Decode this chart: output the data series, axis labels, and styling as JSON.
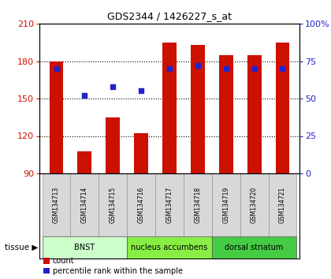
{
  "title": "GDS2344 / 1426227_s_at",
  "samples": [
    "GSM134713",
    "GSM134714",
    "GSM134715",
    "GSM134716",
    "GSM134717",
    "GSM134718",
    "GSM134719",
    "GSM134720",
    "GSM134721"
  ],
  "counts": [
    180,
    108,
    135,
    122,
    195,
    193,
    185,
    185,
    195
  ],
  "percentiles": [
    70,
    52,
    58,
    55,
    70,
    72,
    70,
    70,
    70
  ],
  "ylim_left": [
    90,
    210
  ],
  "ylim_right": [
    0,
    100
  ],
  "yticks_left": [
    90,
    120,
    150,
    180,
    210
  ],
  "yticks_right": [
    0,
    25,
    50,
    75,
    100
  ],
  "ytick_labels_right": [
    "0",
    "25",
    "50",
    "75",
    "100%"
  ],
  "bar_color": "#cc1100",
  "dot_color": "#2222cc",
  "groups": [
    {
      "label": "BNST",
      "start": 0,
      "end": 3,
      "color": "#ccffcc"
    },
    {
      "label": "nucleus accumbens",
      "start": 3,
      "end": 6,
      "color": "#88ee44"
    },
    {
      "label": "dorsal striatum",
      "start": 6,
      "end": 9,
      "color": "#44cc44"
    }
  ],
  "tissue_label": "tissue",
  "legend_count_label": "count",
  "legend_pct_label": "percentile rank within the sample",
  "bar_width": 0.5,
  "bar_baseline": 90
}
